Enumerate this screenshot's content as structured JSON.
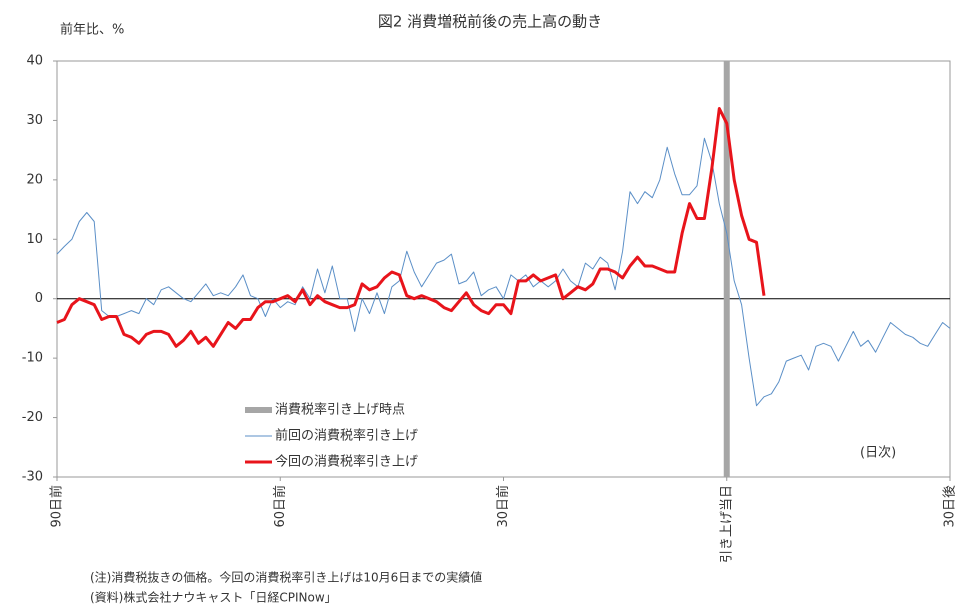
{
  "chart_data": {
    "type": "line",
    "title": "図2  消費増税前後の売上高の動き",
    "y_label": "前年比、%",
    "annotation": "(日次)",
    "notes": [
      "(注)消費税抜きの価格。今回の消費税率引き上げは10月6日までの実績値",
      "(資料)株式会社ナウキャスト「日経CPINow」"
    ],
    "x": [
      -90,
      -89,
      -88,
      -87,
      -86,
      -85,
      -84,
      -83,
      -82,
      -81,
      -80,
      -79,
      -78,
      -77,
      -76,
      -75,
      -74,
      -73,
      -72,
      -71,
      -70,
      -69,
      -68,
      -67,
      -66,
      -65,
      -64,
      -63,
      -62,
      -61,
      -60,
      -59,
      -58,
      -57,
      -56,
      -55,
      -54,
      -53,
      -52,
      -51,
      -50,
      -49,
      -48,
      -47,
      -46,
      -45,
      -44,
      -43,
      -42,
      -41,
      -40,
      -39,
      -38,
      -37,
      -36,
      -35,
      -34,
      -33,
      -32,
      -31,
      -30,
      -29,
      -28,
      -27,
      -26,
      -25,
      -24,
      -23,
      -22,
      -21,
      -20,
      -19,
      -18,
      -17,
      -16,
      -15,
      -14,
      -13,
      -12,
      -11,
      -10,
      -9,
      -8,
      -7,
      -6,
      -5,
      -4,
      -3,
      -2,
      -1,
      0,
      1,
      2,
      3,
      4,
      5,
      6,
      7,
      8,
      9,
      10,
      11,
      12,
      13,
      14,
      15,
      16,
      17,
      18,
      19,
      20,
      21,
      22,
      23,
      24,
      25,
      26,
      27,
      28,
      29,
      30
    ],
    "series": [
      {
        "name": "前回の消費税率引き上げ",
        "color": "#5b8fc7",
        "width": 1,
        "values": [
          7.5,
          8.8,
          10,
          13,
          14.5,
          13,
          -2,
          -3,
          -3,
          -2.5,
          -2,
          -2.5,
          0,
          -1,
          1.5,
          2,
          1,
          0,
          -0.5,
          1,
          2.5,
          0.5,
          1,
          0.5,
          2,
          4,
          0.5,
          0,
          -3,
          0,
          -1.5,
          -0.5,
          -1,
          2,
          0,
          5,
          1,
          5.5,
          0,
          0,
          -5.5,
          0,
          -2.5,
          1,
          -2.5,
          2,
          3,
          8,
          4.5,
          2,
          4,
          6,
          6.5,
          7.5,
          2.5,
          3,
          4.5,
          0.5,
          1.5,
          2,
          0,
          4,
          3,
          4,
          2,
          3,
          2,
          3,
          5,
          3,
          2,
          6,
          5,
          7,
          6,
          1.5,
          8,
          18,
          16,
          18,
          17,
          20,
          25.5,
          21,
          17.5,
          17.5,
          19,
          27,
          23,
          16,
          11,
          3,
          -1,
          -10,
          -18,
          -16.5,
          -16,
          -14,
          -10.5,
          -10,
          -9.5,
          -12,
          -8,
          -7.5,
          -8,
          -10.5,
          -8,
          -5.5,
          -8,
          -7,
          -9,
          -6.5,
          -4,
          -5,
          -6,
          -6.5,
          -7.5,
          -8,
          -6,
          -4,
          -5
        ]
      },
      {
        "name": "今回の消費税率引き上げ",
        "color": "#e8141b",
        "width": 3,
        "values": [
          -4,
          -3.5,
          -1,
          0,
          -0.5,
          -1,
          -3.5,
          -3,
          -3,
          -6,
          -6.5,
          -7.5,
          -6,
          -5.5,
          -5.5,
          -6,
          -8,
          -7,
          -5.5,
          -7.5,
          -6.5,
          -8,
          -6,
          -4,
          -5,
          -3.5,
          -3.5,
          -1.5,
          -0.5,
          -0.5,
          0,
          0.5,
          -0.5,
          1.5,
          -1,
          0.5,
          -0.5,
          -1,
          -1.5,
          -1.5,
          -1,
          2.5,
          1.5,
          2,
          3.5,
          4.5,
          4,
          0.5,
          0,
          0.5,
          0,
          -0.5,
          -1.5,
          -2,
          -0.5,
          1,
          -1,
          -2,
          -2.5,
          -1,
          -1,
          -2.5,
          3,
          3,
          4,
          3,
          3.5,
          4,
          0,
          1,
          2,
          1.5,
          2.5,
          5,
          5,
          4.5,
          3.5,
          5.5,
          7,
          5.5,
          5.5,
          5,
          4.5,
          4.5,
          11,
          16,
          13.5,
          13.5,
          22,
          32,
          29.5,
          20,
          14,
          10,
          9.5,
          0.5,
          null,
          null,
          null,
          null,
          null,
          null,
          null,
          null,
          null,
          null,
          null,
          null,
          null,
          null,
          null,
          null,
          null,
          null,
          null,
          null,
          null,
          null,
          null,
          null,
          null
        ]
      }
    ],
    "vline": {
      "x": 0,
      "name": "消費税率引き上げ時点",
      "color": "#a6a6a6"
    },
    "xlim": [
      -90,
      30
    ],
    "xticks": [
      {
        "value": -90,
        "label": "90日前"
      },
      {
        "value": -60,
        "label": "60日前"
      },
      {
        "value": -30,
        "label": "30日前"
      },
      {
        "value": 0,
        "label": "引き上げ当日"
      },
      {
        "value": 30,
        "label": "30日後"
      }
    ],
    "ylim": [
      -30,
      40
    ],
    "yticks": [
      -30,
      -20,
      -10,
      0,
      10,
      20,
      30,
      40
    ]
  }
}
